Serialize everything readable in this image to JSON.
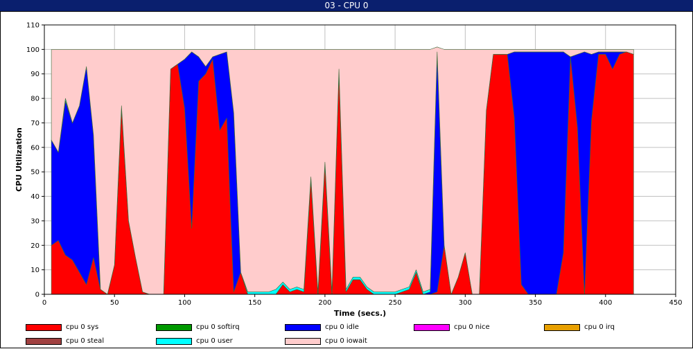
{
  "window": {
    "title": "03 - CPU 0"
  },
  "chart_data": {
    "type": "area",
    "stacked": true,
    "title": "",
    "xlabel": "Time (secs.)",
    "ylabel": "CPU Utilization",
    "xlim": [
      0,
      450
    ],
    "ylim": [
      0,
      110
    ],
    "xticks": [
      0,
      50,
      100,
      150,
      200,
      250,
      300,
      350,
      400,
      450
    ],
    "yticks": [
      0,
      10,
      20,
      30,
      40,
      50,
      60,
      70,
      80,
      90,
      100,
      110
    ],
    "grid": true,
    "legend_position": "bottom",
    "x": [
      5,
      10,
      15,
      20,
      25,
      30,
      35,
      40,
      45,
      50,
      55,
      60,
      65,
      70,
      75,
      80,
      85,
      90,
      95,
      100,
      105,
      110,
      115,
      120,
      125,
      130,
      135,
      140,
      145,
      150,
      155,
      160,
      165,
      170,
      175,
      180,
      185,
      190,
      195,
      200,
      205,
      210,
      215,
      220,
      225,
      230,
      235,
      240,
      245,
      250,
      255,
      260,
      265,
      270,
      275,
      280,
      285,
      290,
      295,
      300,
      305,
      310,
      315,
      320,
      325,
      330,
      335,
      340,
      345,
      350,
      355,
      360,
      365,
      370,
      375,
      380,
      385,
      390,
      395,
      400,
      405,
      410,
      415,
      420
    ],
    "series": [
      {
        "name": "cpu 0 sys",
        "color": "#ff0000",
        "values": [
          20,
          22,
          16,
          14,
          9,
          4,
          15,
          2,
          0,
          12,
          76,
          30,
          15,
          1,
          0,
          0,
          0,
          92,
          94,
          76,
          27,
          87,
          90,
          96,
          67,
          72,
          1,
          9,
          0,
          0,
          0,
          0,
          0,
          4,
          1,
          2,
          1,
          47,
          0,
          53,
          0,
          91,
          1,
          6,
          6,
          2,
          0,
          0,
          0,
          0,
          1,
          2,
          9,
          0,
          0,
          1,
          20,
          0,
          7,
          17,
          0,
          0,
          75,
          98,
          98,
          98,
          72,
          4,
          0,
          0,
          0,
          0,
          0,
          17,
          97,
          68,
          0,
          71,
          98,
          98,
          92,
          98,
          99,
          98
        ]
      },
      {
        "name": "cpu 0 softirq",
        "color": "#009900",
        "values": [
          0,
          0,
          0,
          0,
          0,
          0,
          0,
          0,
          0,
          0,
          0,
          0,
          0,
          0,
          0,
          0,
          0,
          0,
          0,
          0,
          0,
          0,
          0,
          0,
          0,
          0,
          0,
          0,
          0,
          0,
          0,
          0,
          0,
          0,
          0,
          0,
          0,
          0,
          0,
          0,
          0,
          0,
          0,
          0,
          0,
          0,
          0,
          0,
          0,
          0,
          0,
          0,
          0,
          0,
          0,
          0,
          0,
          0,
          0,
          0,
          0,
          0,
          0,
          0,
          0,
          0,
          0,
          0,
          0,
          0,
          0,
          0,
          0,
          0,
          0,
          0,
          0,
          0,
          0,
          0,
          0,
          0,
          0,
          0
        ]
      },
      {
        "name": "cpu 0 idle",
        "color": "#0000ff",
        "values": [
          43,
          36,
          63,
          56,
          68,
          89,
          50,
          0,
          0,
          0,
          0,
          0,
          0,
          0,
          0,
          0,
          0,
          0,
          0,
          20,
          72,
          10,
          3,
          1,
          31,
          27,
          73,
          0,
          0,
          0,
          0,
          0,
          0,
          0,
          0,
          0,
          0,
          0,
          0,
          0,
          0,
          0,
          0,
          0,
          0,
          0,
          0,
          0,
          0,
          0,
          0,
          0,
          0,
          0,
          1,
          97,
          0,
          0,
          0,
          0,
          0,
          0,
          0,
          0,
          0,
          0,
          27,
          95,
          99,
          99,
          99,
          99,
          99,
          82,
          0,
          30,
          99,
          27,
          1,
          1,
          7,
          1,
          0,
          0
        ]
      },
      {
        "name": "cpu 0 nice",
        "color": "#ff00ff",
        "values": [
          0,
          0,
          0,
          0,
          0,
          0,
          0,
          0,
          0,
          0,
          0,
          0,
          0,
          0,
          0,
          0,
          0,
          0,
          0,
          0,
          0,
          0,
          0,
          0,
          0,
          0,
          0,
          0,
          0,
          0,
          0,
          0,
          0,
          0,
          0,
          0,
          0,
          0,
          0,
          0,
          0,
          0,
          0,
          0,
          0,
          0,
          0,
          0,
          0,
          0,
          0,
          0,
          0,
          0,
          0,
          0,
          0,
          0,
          0,
          0,
          0,
          0,
          0,
          0,
          0,
          0,
          0,
          0,
          0,
          0,
          0,
          0,
          0,
          0,
          0,
          0,
          0,
          0,
          0,
          0,
          0,
          0,
          0,
          0
        ]
      },
      {
        "name": "cpu 0 irq",
        "color": "#e8a000",
        "values": [
          0,
          0,
          0,
          0,
          0,
          0,
          0,
          0,
          0,
          0,
          0,
          0,
          0,
          0,
          0,
          0,
          0,
          0,
          0,
          0,
          0,
          0,
          0,
          0,
          0,
          0,
          0,
          0,
          0,
          0,
          0,
          0,
          0,
          0,
          0,
          0,
          0,
          0,
          0,
          0,
          0,
          0,
          0,
          0,
          0,
          0,
          0,
          0,
          0,
          0,
          0,
          0,
          0,
          0,
          0,
          0,
          0,
          0,
          0,
          0,
          0,
          0,
          0,
          0,
          0,
          0,
          0,
          0,
          0,
          0,
          0,
          0,
          0,
          0,
          0,
          0,
          0,
          0,
          0,
          0,
          0,
          0,
          0,
          0
        ]
      },
      {
        "name": "cpu 0 steal",
        "color": "#a04040",
        "values": [
          0,
          0,
          0,
          0,
          0,
          0,
          0,
          0,
          0,
          0,
          0,
          0,
          0,
          0,
          0,
          0,
          0,
          0,
          0,
          0,
          0,
          0,
          0,
          0,
          0,
          0,
          0,
          0,
          0,
          0,
          0,
          0,
          0,
          0,
          0,
          0,
          0,
          0,
          0,
          0,
          0,
          0,
          0,
          0,
          0,
          0,
          0,
          0,
          0,
          0,
          0,
          0,
          0,
          0,
          0,
          0,
          0,
          0,
          0,
          0,
          0,
          0,
          0,
          0,
          0,
          0,
          0,
          0,
          0,
          0,
          0,
          0,
          0,
          0,
          0,
          0,
          0,
          0,
          0,
          0,
          0,
          0,
          0,
          0
        ]
      },
      {
        "name": "cpu 0 user",
        "color": "#00ffff",
        "values": [
          0,
          0,
          1,
          0,
          0,
          0,
          0,
          0,
          0,
          0,
          1,
          0,
          0,
          0,
          0,
          0,
          0,
          0,
          0,
          0,
          0,
          0,
          0,
          0,
          0,
          0,
          0,
          0,
          1,
          1,
          1,
          1,
          2,
          1,
          1,
          1,
          1,
          1,
          1,
          1,
          1,
          1,
          1,
          1,
          1,
          1,
          1,
          1,
          1,
          1,
          1,
          1,
          1,
          1,
          1,
          1,
          0,
          0,
          0,
          0,
          0,
          0,
          0,
          0,
          0,
          0,
          0,
          0,
          0,
          0,
          0,
          0,
          0,
          0,
          0,
          0,
          0,
          0,
          0,
          0,
          0,
          0,
          0,
          0
        ]
      },
      {
        "name": "cpu 0 iowait",
        "color": "#ffcccc",
        "values": [
          37,
          42,
          20,
          30,
          23,
          7,
          35,
          98,
          100,
          88,
          23,
          70,
          85,
          99,
          100,
          100,
          100,
          8,
          6,
          4,
          1,
          3,
          7,
          3,
          2,
          1,
          26,
          91,
          99,
          99,
          99,
          99,
          98,
          95,
          98,
          97,
          98,
          52,
          99,
          46,
          99,
          8,
          98,
          93,
          93,
          97,
          99,
          99,
          99,
          99,
          98,
          97,
          90,
          99,
          98,
          2,
          80,
          100,
          93,
          83,
          100,
          100,
          25,
          2,
          2,
          2,
          1,
          1,
          1,
          1,
          1,
          1,
          1,
          1,
          3,
          2,
          1,
          2,
          1,
          1,
          1,
          1,
          1,
          2
        ]
      }
    ]
  }
}
